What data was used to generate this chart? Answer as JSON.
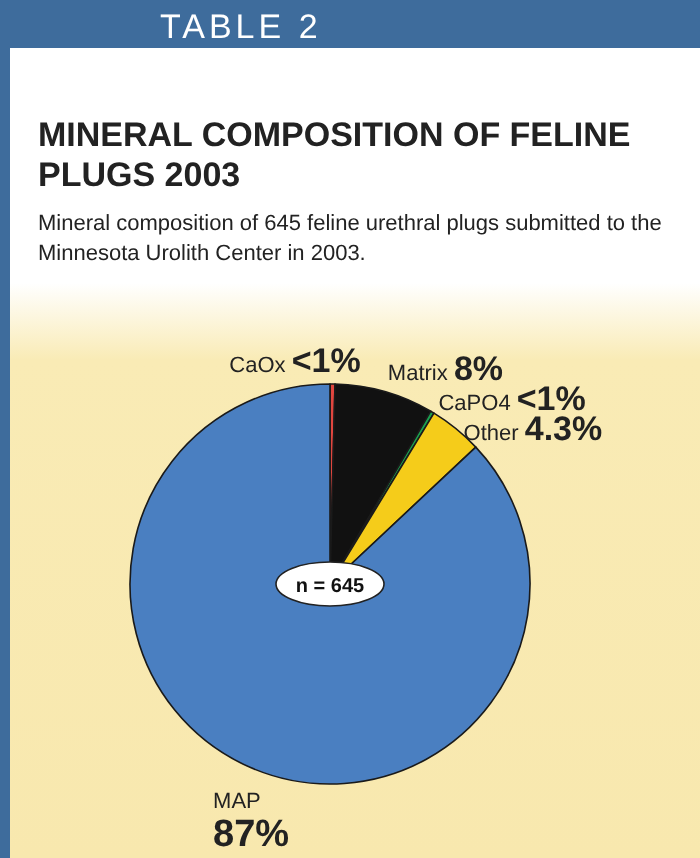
{
  "chart_data": {
    "type": "pie",
    "title": "MINERAL COMPOSITION OF FELINE PLUGS 2003",
    "subtitle": "Mineral composition of 645 feline urethral plugs submitted to the Minnesota Urolith Center in 2003.",
    "annotations": [
      "TABLE 2",
      "n = 645"
    ],
    "categories": [
      "CaOx",
      "Matrix",
      "CaPO4",
      "Other",
      "MAP"
    ],
    "values": [
      0.4,
      8,
      0.3,
      4.3,
      87
    ],
    "value_labels": [
      "<1%",
      "8%",
      "<1%",
      "4.3%",
      "87%"
    ],
    "colors": [
      "#e0463f",
      "#111111",
      "#1aa050",
      "#f5cc1a",
      "#4a7fc1"
    ]
  }
}
